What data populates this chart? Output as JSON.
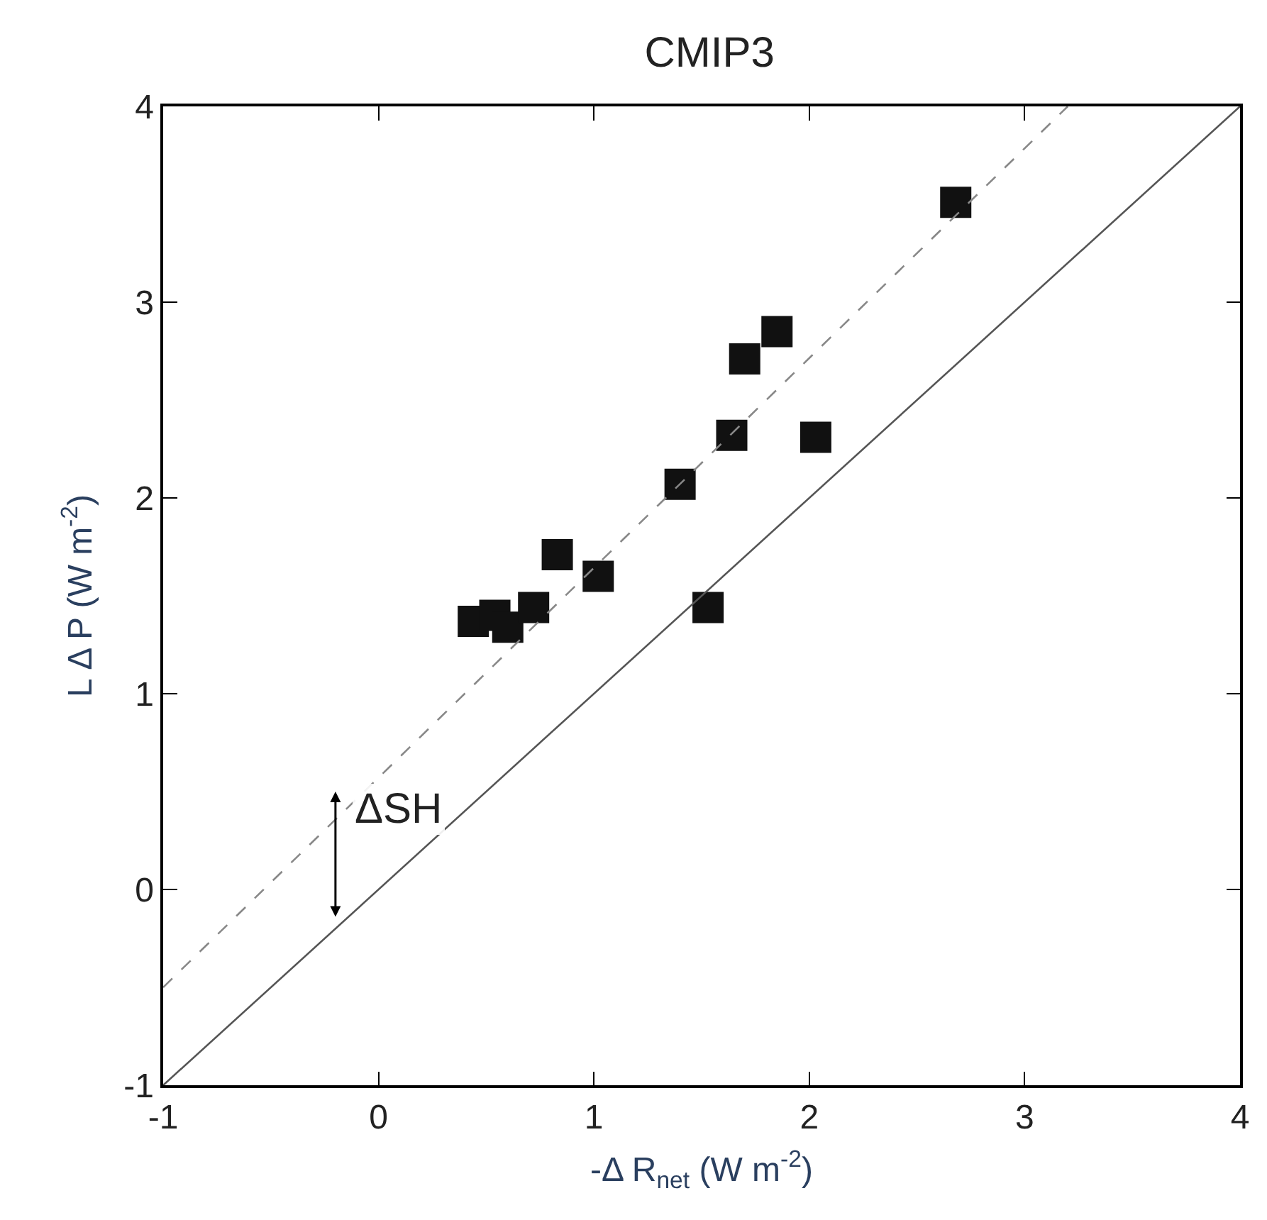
{
  "chart_data": {
    "type": "scatter",
    "title": "CMIP3",
    "xlabel": "-Δ R$_{net}$ (W m$^{-2}$)",
    "ylabel": "L Δ P (W m$^{-2}$)",
    "xlim": [
      -1,
      4
    ],
    "ylim": [
      -1,
      4
    ],
    "xticks": [
      -1,
      0,
      1,
      2,
      3,
      4
    ],
    "yticks": [
      -1,
      0,
      1,
      2,
      3,
      4
    ],
    "marker": "square",
    "series": [
      {
        "color": "#111111",
        "x": [
          0.44,
          0.54,
          0.6,
          0.72,
          0.83,
          1.02,
          1.4,
          1.53,
          1.64,
          1.7,
          1.85,
          2.03,
          2.68
        ],
        "values": [
          1.37,
          1.4,
          1.34,
          1.44,
          1.71,
          1.6,
          2.07,
          1.44,
          2.32,
          2.71,
          2.85,
          2.31,
          3.51
        ]
      },
      {
        "type": "line",
        "color": "#555555",
        "line_style": "solid",
        "marker": "none",
        "x": [
          -1,
          4
        ],
        "values": [
          -1,
          4
        ]
      },
      {
        "type": "line",
        "color": "#888888",
        "line_style": "dashed",
        "marker": "none",
        "x": [
          -1,
          3.2
        ],
        "values": [
          -0.5,
          4
        ]
      }
    ],
    "annotations": [
      "ΔSH"
    ]
  }
}
